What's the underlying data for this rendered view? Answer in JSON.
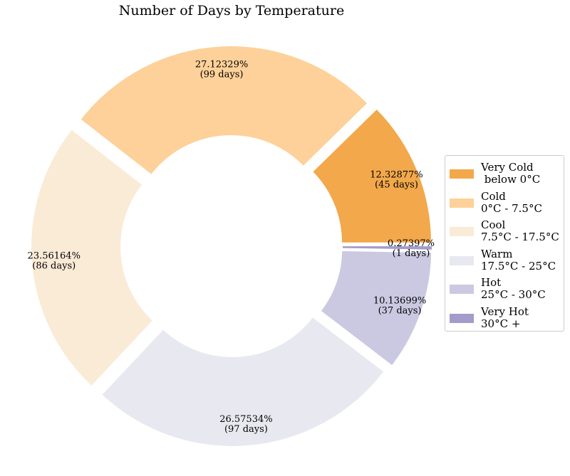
{
  "chart_data": {
    "type": "pie",
    "title": "Number of Days by Temperature",
    "donut": true,
    "slices": [
      {
        "label": "Very Cold",
        "range": " below 0°C",
        "days": 45,
        "percent": "12.32877%",
        "days_label": "(45 days)",
        "color": "#f2a84b"
      },
      {
        "label": "Cold",
        "range": "0°C - 7.5°C",
        "days": 99,
        "percent": "27.12329%",
        "days_label": "(99 days)",
        "color": "#fdd199"
      },
      {
        "label": "Cool",
        "range": "7.5°C - 17.5°C",
        "days": 86,
        "percent": "23.56164%",
        "days_label": "(86 days)",
        "color": "#faebd7"
      },
      {
        "label": "Warm",
        "range": "17.5°C - 25°C",
        "days": 97,
        "percent": "26.57534%",
        "days_label": "(97 days)",
        "color": "#e8e8f0"
      },
      {
        "label": "Hot",
        "range": "25°C - 30°C",
        "days": 37,
        "percent": "10.13699%",
        "days_label": "(37 days)",
        "color": "#cbc9e2"
      },
      {
        "label": "Very Hot",
        "range": "30°C +",
        "days": 1,
        "percent": "0.27397%",
        "days_label": "(1 days)",
        "color": "#a29ccb"
      }
    ],
    "legend_position": "right"
  }
}
